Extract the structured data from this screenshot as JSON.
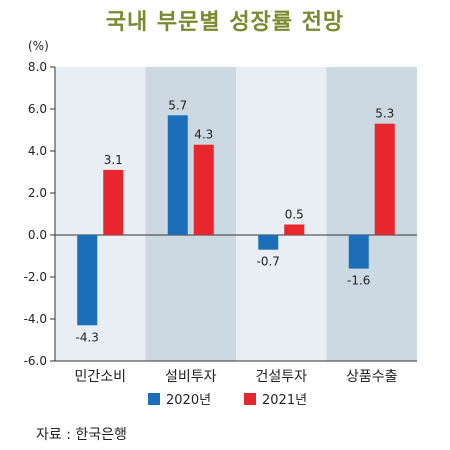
{
  "chart_data": {
    "type": "bar",
    "title": "국내 부문별 성장률 전망",
    "ylabel": "(%)",
    "ylim": [
      -6.0,
      8.0
    ],
    "yticks": [
      "8.0",
      "6.0",
      "4.0",
      "2.0",
      "0.0",
      "-2.0",
      "-4.0",
      "-6.0"
    ],
    "categories": [
      "민간소비",
      "설비투자",
      "건설투자",
      "상품수출"
    ],
    "series": [
      {
        "name": "2020년",
        "values": [
          -4.3,
          5.7,
          -0.7,
          -1.6
        ],
        "labels": [
          "-4.3",
          "5.7",
          "-0.7",
          "-1.6"
        ],
        "color": "#1a6fb8"
      },
      {
        "name": "2021년",
        "values": [
          3.1,
          4.3,
          0.5,
          5.3
        ],
        "labels": [
          "3.1",
          "4.3",
          "0.5",
          "5.3"
        ],
        "color": "#e8262d"
      }
    ],
    "band_colors": [
      "#e8eef3",
      "#cdd9e2"
    ],
    "grid": false,
    "legend_position": "bottom"
  },
  "source_text": "자료 : 한국은행"
}
